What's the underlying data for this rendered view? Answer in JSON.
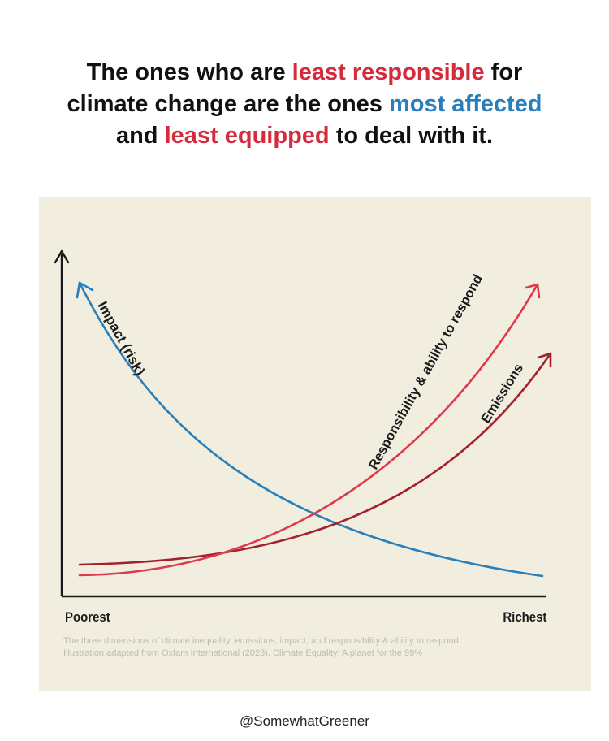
{
  "headline": {
    "l1_a": "The ones who are ",
    "l1_red": "least responsible",
    "l1_b": " for",
    "l2_a": "climate change are the ones ",
    "l2_blue": "most affected",
    "l3_red": "least equipped",
    "l3_a": "and ",
    "l3_b": " to deal with it."
  },
  "chart_data": {
    "type": "line",
    "x_range_labels": [
      "Poorest",
      "Richest"
    ],
    "xlabel": "",
    "ylabel": "",
    "axes_numeric": false,
    "series": [
      {
        "name": "Impact (risk)",
        "color": "#2a7fb8",
        "trend": "decreasing",
        "x": [
          0,
          0.25,
          0.5,
          0.75,
          1
        ],
        "y": [
          1.0,
          0.52,
          0.2,
          0.05,
          0.02
        ]
      },
      {
        "name": "Responsibility & ability to respond",
        "color": "#e0394a",
        "trend": "increasing",
        "x": [
          0,
          0.25,
          0.5,
          0.75,
          1
        ],
        "y": [
          0.0,
          0.03,
          0.18,
          0.5,
          1.0
        ]
      },
      {
        "name": "Emissions",
        "color": "#a3202c",
        "trend": "increasing",
        "x": [
          0,
          0.25,
          0.5,
          0.75,
          1
        ],
        "y": [
          0.04,
          0.05,
          0.13,
          0.35,
          0.85
        ]
      }
    ],
    "caption_line1": "The three dimensions of climate inequality: emissions, impact, and responsibility & ability to respond.",
    "caption_line2": "Illustration adapted from Oxfam International (2023). Climate Equality: A planet for the 99%"
  },
  "credit": "@SomewhatGreener"
}
